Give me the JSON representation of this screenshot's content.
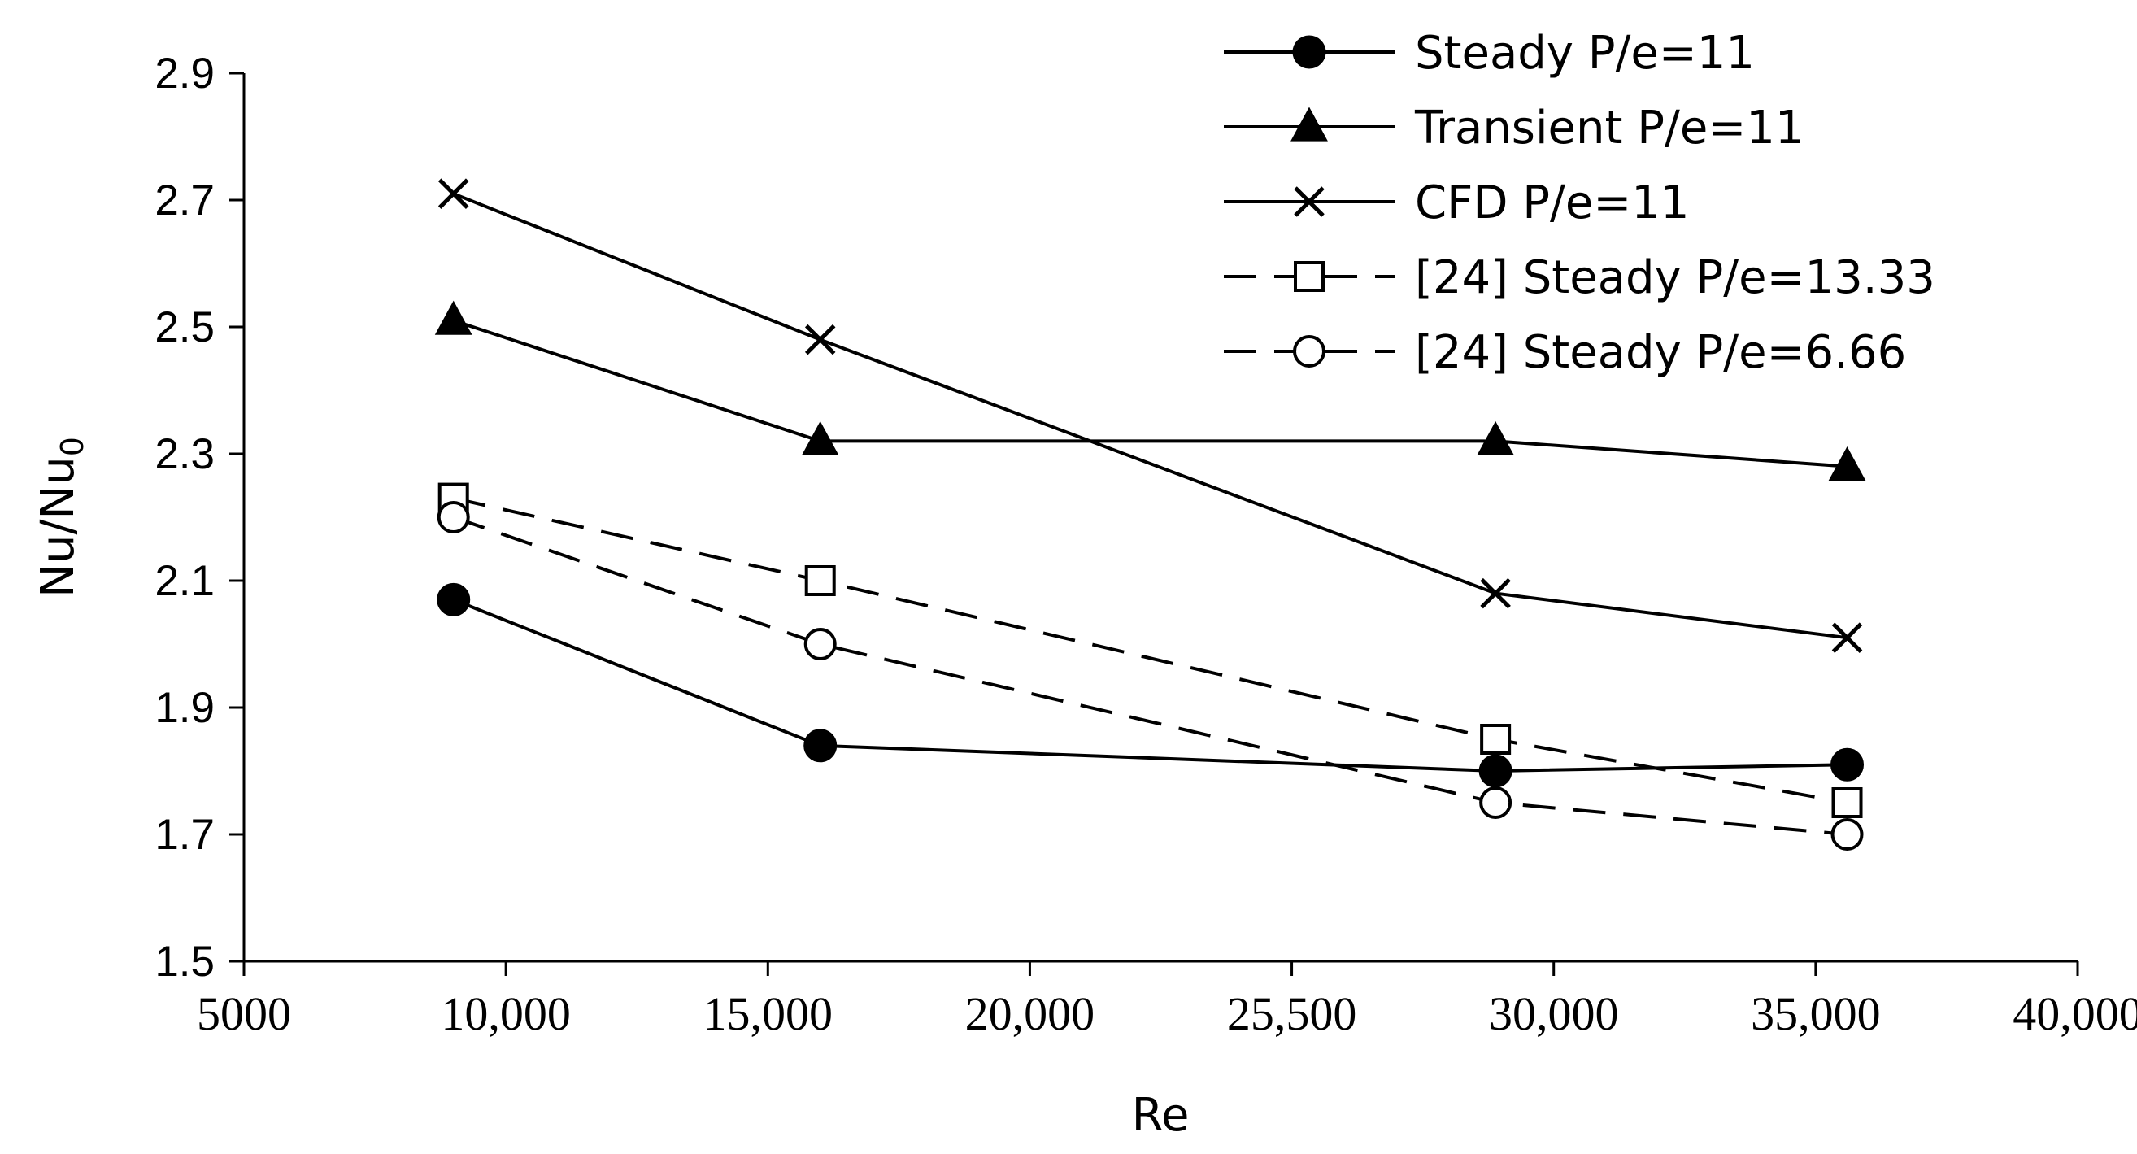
{
  "chart_data": {
    "type": "line",
    "title": "",
    "xlabel": "Re",
    "ylabel": "Nu/Nu",
    "ylabel_subscript": "0",
    "xlim": [
      5000,
      40000
    ],
    "ylim": [
      1.5,
      2.9
    ],
    "x_ticks": [
      5000,
      10000,
      15000,
      20000,
      25500,
      30000,
      35000,
      40000
    ],
    "x_tick_labels": [
      "5000",
      "10,000",
      "15,000",
      "20,000",
      "25,500",
      "30,000",
      "35,000",
      "40,000"
    ],
    "y_ticks": [
      1.5,
      1.7,
      1.9,
      2.1,
      2.3,
      2.5,
      2.7,
      2.9
    ],
    "y_tick_labels": [
      "1.5",
      "1.7",
      "1.9",
      "2.1",
      "2.3",
      "2.5",
      "2.7",
      "2.9"
    ],
    "grid": false,
    "legend_position": "top-right",
    "x": [
      9000,
      16000,
      29000,
      35600
    ],
    "series": [
      {
        "name": "Steady P/e=11",
        "values": [
          2.07,
          1.84,
          1.8,
          1.81
        ],
        "marker": "filled-circle",
        "line": "solid"
      },
      {
        "name": "Transient P/e=11",
        "values": [
          2.51,
          2.32,
          2.32,
          2.28
        ],
        "marker": "filled-triangle",
        "line": "solid"
      },
      {
        "name": "CFD P/e=11",
        "values": [
          2.71,
          2.48,
          2.08,
          2.01
        ],
        "marker": "cross",
        "line": "solid"
      },
      {
        "name": "[24] Steady P/e=13.33",
        "values": [
          2.23,
          2.1,
          1.85,
          1.75
        ],
        "marker": "open-square",
        "line": "dashed"
      },
      {
        "name": "[24] Steady P/e=6.66",
        "values": [
          2.2,
          2.0,
          1.75,
          1.7
        ],
        "marker": "open-circle",
        "line": "dashed"
      }
    ],
    "colors": {
      "line": "#000000",
      "background": "#ffffff"
    }
  }
}
